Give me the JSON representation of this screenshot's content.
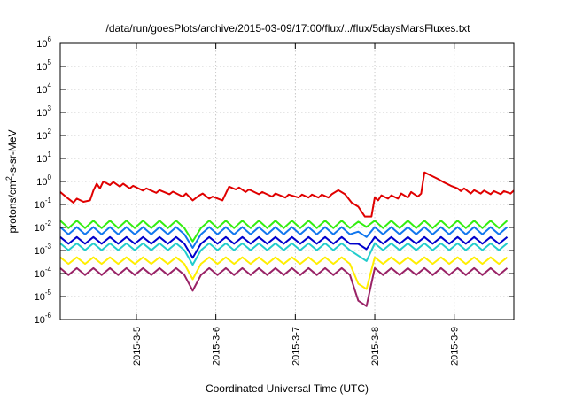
{
  "chart_data": {
    "type": "line",
    "title": "/data/run/goesPlots/archive/2015-03-09/17:00/flux/../flux/5daysMarsFluxes.txt",
    "xlabel": "Coordinated Universal Time (UTC)",
    "ylabel": {
      "prefix": "protons/cm",
      "sup": "2",
      "suffix": "-s-sr-MeV"
    },
    "yscale": "log",
    "ylim": [
      1e-06,
      1000000.0
    ],
    "xlim": [
      "2015-03-04T01:00",
      "2015-03-09T18:00"
    ],
    "grid": true,
    "xticks": [
      {
        "date": "2015-03-05T00:00",
        "label": "2015-3-5"
      },
      {
        "date": "2015-03-06T00:00",
        "label": "2015-3-6"
      },
      {
        "date": "2015-03-07T00:00",
        "label": "2015-3-7"
      },
      {
        "date": "2015-03-08T00:00",
        "label": "2015-3-8"
      },
      {
        "date": "2015-03-09T00:00",
        "label": "2015-3-9"
      }
    ],
    "yticks": [
      {
        "value": 1e-06,
        "base": "10",
        "exp": "-6"
      },
      {
        "value": 1e-05,
        "base": "10",
        "exp": "-5"
      },
      {
        "value": 0.0001,
        "base": "10",
        "exp": "-4"
      },
      {
        "value": 0.001,
        "base": "10",
        "exp": "-3"
      },
      {
        "value": 0.01,
        "base": "10",
        "exp": "-2"
      },
      {
        "value": 0.1,
        "base": "10",
        "exp": "-1"
      },
      {
        "value": 1,
        "base": "10",
        "exp": "0"
      },
      {
        "value": 10,
        "base": "10",
        "exp": "1"
      },
      {
        "value": 100,
        "base": "10",
        "exp": "2"
      },
      {
        "value": 1000,
        "base": "10",
        "exp": "3"
      },
      {
        "value": 10000,
        "base": "10",
        "exp": "4"
      },
      {
        "value": 100000,
        "base": "10",
        "exp": "5"
      },
      {
        "value": 1000000,
        "base": "10",
        "exp": "6"
      }
    ],
    "series": [
      {
        "color": "#e00000",
        "points": [
          [
            "2015-03-04T01:00",
            0.35
          ],
          [
            "2015-03-04T03:00",
            0.2
          ],
          [
            "2015-03-04T05:00",
            0.12
          ],
          [
            "2015-03-04T06:00",
            0.18
          ],
          [
            "2015-03-04T08:00",
            0.13
          ],
          [
            "2015-03-04T10:00",
            0.15
          ],
          [
            "2015-03-04T11:00",
            0.4
          ],
          [
            "2015-03-04T12:00",
            0.8
          ],
          [
            "2015-03-04T13:00",
            0.5
          ],
          [
            "2015-03-04T14:00",
            1.0
          ],
          [
            "2015-03-04T16:00",
            0.7
          ],
          [
            "2015-03-04T17:00",
            0.95
          ],
          [
            "2015-03-04T19:00",
            0.6
          ],
          [
            "2015-03-04T20:00",
            0.8
          ],
          [
            "2015-03-04T22:00",
            0.5
          ],
          [
            "2015-03-04T23:00",
            0.65
          ],
          [
            "2015-03-05T02:00",
            0.4
          ],
          [
            "2015-03-05T03:00",
            0.5
          ],
          [
            "2015-03-05T06:00",
            0.32
          ],
          [
            "2015-03-05T07:00",
            0.42
          ],
          [
            "2015-03-05T10:00",
            0.28
          ],
          [
            "2015-03-05T11:00",
            0.36
          ],
          [
            "2015-03-05T14:00",
            0.22
          ],
          [
            "2015-03-05T15:00",
            0.3
          ],
          [
            "2015-03-05T17:00",
            0.15
          ],
          [
            "2015-03-05T19:00",
            0.25
          ],
          [
            "2015-03-05T20:00",
            0.3
          ],
          [
            "2015-03-05T22:00",
            0.18
          ],
          [
            "2015-03-05T23:00",
            0.22
          ],
          [
            "2015-03-06T02:00",
            0.15
          ],
          [
            "2015-03-06T04:00",
            0.6
          ],
          [
            "2015-03-06T06:00",
            0.45
          ],
          [
            "2015-03-06T07:00",
            0.55
          ],
          [
            "2015-03-06T09:00",
            0.35
          ],
          [
            "2015-03-06T10:00",
            0.45
          ],
          [
            "2015-03-06T13:00",
            0.28
          ],
          [
            "2015-03-06T14:00",
            0.35
          ],
          [
            "2015-03-06T17:00",
            0.22
          ],
          [
            "2015-03-06T18:00",
            0.3
          ],
          [
            "2015-03-06T21:00",
            0.2
          ],
          [
            "2015-03-06T22:00",
            0.27
          ],
          [
            "2015-03-07T01:00",
            0.2
          ],
          [
            "2015-03-07T02:00",
            0.27
          ],
          [
            "2015-03-07T04:00",
            0.2
          ],
          [
            "2015-03-07T05:00",
            0.27
          ],
          [
            "2015-03-07T07:00",
            0.2
          ],
          [
            "2015-03-07T08:00",
            0.27
          ],
          [
            "2015-03-07T10:00",
            0.2
          ],
          [
            "2015-03-07T11:00",
            0.28
          ],
          [
            "2015-03-07T13:00",
            0.42
          ],
          [
            "2015-03-07T15:00",
            0.28
          ],
          [
            "2015-03-07T17:00",
            0.12
          ],
          [
            "2015-03-07T19:00",
            0.08
          ],
          [
            "2015-03-07T21:00",
            0.03
          ],
          [
            "2015-03-07T23:00",
            0.03
          ],
          [
            "2015-03-08T00:00",
            0.2
          ],
          [
            "2015-03-08T01:00",
            0.15
          ],
          [
            "2015-03-08T02:00",
            0.25
          ],
          [
            "2015-03-08T04:00",
            0.18
          ],
          [
            "2015-03-08T05:00",
            0.25
          ],
          [
            "2015-03-08T07:00",
            0.18
          ],
          [
            "2015-03-08T08:00",
            0.3
          ],
          [
            "2015-03-08T10:00",
            0.2
          ],
          [
            "2015-03-08T11:00",
            0.35
          ],
          [
            "2015-03-08T13:00",
            0.22
          ],
          [
            "2015-03-08T14:00",
            0.3
          ],
          [
            "2015-03-08T15:00",
            2.5
          ],
          [
            "2015-03-08T17:00",
            1.8
          ],
          [
            "2015-03-08T19:00",
            1.3
          ],
          [
            "2015-03-08T21:00",
            0.9
          ],
          [
            "2015-03-08T23:00",
            0.65
          ],
          [
            "2015-03-09T01:00",
            0.5
          ],
          [
            "2015-03-09T02:00",
            0.38
          ],
          [
            "2015-03-09T03:00",
            0.5
          ],
          [
            "2015-03-09T05:00",
            0.3
          ],
          [
            "2015-03-09T06:00",
            0.42
          ],
          [
            "2015-03-09T08:00",
            0.3
          ],
          [
            "2015-03-09T09:00",
            0.4
          ],
          [
            "2015-03-09T11:00",
            0.28
          ],
          [
            "2015-03-09T12:00",
            0.38
          ],
          [
            "2015-03-09T14:00",
            0.28
          ],
          [
            "2015-03-09T15:00",
            0.38
          ],
          [
            "2015-03-09T17:00",
            0.3
          ],
          [
            "2015-03-09T18:00",
            0.4
          ]
        ]
      },
      {
        "color": "#33ee11",
        "base": 0.0125,
        "spike": 1.6,
        "dip": 0.75,
        "drop": 0.006
      },
      {
        "color": "#1177ee",
        "base": 0.0065,
        "spike": 1.6,
        "dip": 0.78,
        "drop": 0.0022
      },
      {
        "color": "#0000cc",
        "base": 0.0024,
        "spike": 1.6,
        "dip": 0.82,
        "drop": 0.00065
      },
      {
        "color": "#22cccc",
        "base": 0.0012,
        "spike": 1.7,
        "dip": 0.86,
        "drop": 0.0002
      },
      {
        "color": "#ffee00",
        "base": 0.00028,
        "spike": 1.8,
        "dip": 0.94,
        "drop": 1.2e-05
      },
      {
        "color": "#992266",
        "base": 9e-05,
        "spike": 1.9,
        "dip": 0.96,
        "drop": 2.2e-06
      }
    ]
  }
}
